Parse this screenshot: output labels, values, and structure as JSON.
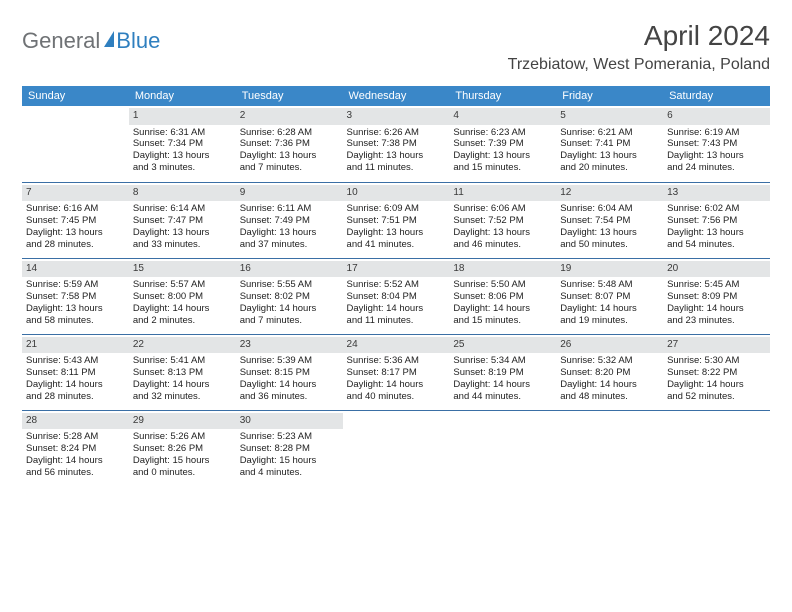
{
  "logo": {
    "part1": "General",
    "part2": "Blue"
  },
  "title": "April 2024",
  "location": "Trzebiatow, West Pomerania, Poland",
  "colors": {
    "header_bg": "#3a87c8",
    "header_text": "#ffffff",
    "daynum_bg": "#e3e5e6",
    "row_border": "#3a6fa5",
    "logo_gray": "#6f7275",
    "logo_blue": "#2f7fbf",
    "body_text": "#222222",
    "background": "#ffffff"
  },
  "fonts": {
    "title_size": 28,
    "location_size": 16,
    "weekday_size": 11,
    "cell_size": 9.5
  },
  "weekdays": [
    "Sunday",
    "Monday",
    "Tuesday",
    "Wednesday",
    "Thursday",
    "Friday",
    "Saturday"
  ],
  "weeks": [
    [
      null,
      {
        "n": "1",
        "sr": "Sunrise: 6:31 AM",
        "ss": "Sunset: 7:34 PM",
        "d1": "Daylight: 13 hours",
        "d2": "and 3 minutes."
      },
      {
        "n": "2",
        "sr": "Sunrise: 6:28 AM",
        "ss": "Sunset: 7:36 PM",
        "d1": "Daylight: 13 hours",
        "d2": "and 7 minutes."
      },
      {
        "n": "3",
        "sr": "Sunrise: 6:26 AM",
        "ss": "Sunset: 7:38 PM",
        "d1": "Daylight: 13 hours",
        "d2": "and 11 minutes."
      },
      {
        "n": "4",
        "sr": "Sunrise: 6:23 AM",
        "ss": "Sunset: 7:39 PM",
        "d1": "Daylight: 13 hours",
        "d2": "and 15 minutes."
      },
      {
        "n": "5",
        "sr": "Sunrise: 6:21 AM",
        "ss": "Sunset: 7:41 PM",
        "d1": "Daylight: 13 hours",
        "d2": "and 20 minutes."
      },
      {
        "n": "6",
        "sr": "Sunrise: 6:19 AM",
        "ss": "Sunset: 7:43 PM",
        "d1": "Daylight: 13 hours",
        "d2": "and 24 minutes."
      }
    ],
    [
      {
        "n": "7",
        "sr": "Sunrise: 6:16 AM",
        "ss": "Sunset: 7:45 PM",
        "d1": "Daylight: 13 hours",
        "d2": "and 28 minutes."
      },
      {
        "n": "8",
        "sr": "Sunrise: 6:14 AM",
        "ss": "Sunset: 7:47 PM",
        "d1": "Daylight: 13 hours",
        "d2": "and 33 minutes."
      },
      {
        "n": "9",
        "sr": "Sunrise: 6:11 AM",
        "ss": "Sunset: 7:49 PM",
        "d1": "Daylight: 13 hours",
        "d2": "and 37 minutes."
      },
      {
        "n": "10",
        "sr": "Sunrise: 6:09 AM",
        "ss": "Sunset: 7:51 PM",
        "d1": "Daylight: 13 hours",
        "d2": "and 41 minutes."
      },
      {
        "n": "11",
        "sr": "Sunrise: 6:06 AM",
        "ss": "Sunset: 7:52 PM",
        "d1": "Daylight: 13 hours",
        "d2": "and 46 minutes."
      },
      {
        "n": "12",
        "sr": "Sunrise: 6:04 AM",
        "ss": "Sunset: 7:54 PM",
        "d1": "Daylight: 13 hours",
        "d2": "and 50 minutes."
      },
      {
        "n": "13",
        "sr": "Sunrise: 6:02 AM",
        "ss": "Sunset: 7:56 PM",
        "d1": "Daylight: 13 hours",
        "d2": "and 54 minutes."
      }
    ],
    [
      {
        "n": "14",
        "sr": "Sunrise: 5:59 AM",
        "ss": "Sunset: 7:58 PM",
        "d1": "Daylight: 13 hours",
        "d2": "and 58 minutes."
      },
      {
        "n": "15",
        "sr": "Sunrise: 5:57 AM",
        "ss": "Sunset: 8:00 PM",
        "d1": "Daylight: 14 hours",
        "d2": "and 2 minutes."
      },
      {
        "n": "16",
        "sr": "Sunrise: 5:55 AM",
        "ss": "Sunset: 8:02 PM",
        "d1": "Daylight: 14 hours",
        "d2": "and 7 minutes."
      },
      {
        "n": "17",
        "sr": "Sunrise: 5:52 AM",
        "ss": "Sunset: 8:04 PM",
        "d1": "Daylight: 14 hours",
        "d2": "and 11 minutes."
      },
      {
        "n": "18",
        "sr": "Sunrise: 5:50 AM",
        "ss": "Sunset: 8:06 PM",
        "d1": "Daylight: 14 hours",
        "d2": "and 15 minutes."
      },
      {
        "n": "19",
        "sr": "Sunrise: 5:48 AM",
        "ss": "Sunset: 8:07 PM",
        "d1": "Daylight: 14 hours",
        "d2": "and 19 minutes."
      },
      {
        "n": "20",
        "sr": "Sunrise: 5:45 AM",
        "ss": "Sunset: 8:09 PM",
        "d1": "Daylight: 14 hours",
        "d2": "and 23 minutes."
      }
    ],
    [
      {
        "n": "21",
        "sr": "Sunrise: 5:43 AM",
        "ss": "Sunset: 8:11 PM",
        "d1": "Daylight: 14 hours",
        "d2": "and 28 minutes."
      },
      {
        "n": "22",
        "sr": "Sunrise: 5:41 AM",
        "ss": "Sunset: 8:13 PM",
        "d1": "Daylight: 14 hours",
        "d2": "and 32 minutes."
      },
      {
        "n": "23",
        "sr": "Sunrise: 5:39 AM",
        "ss": "Sunset: 8:15 PM",
        "d1": "Daylight: 14 hours",
        "d2": "and 36 minutes."
      },
      {
        "n": "24",
        "sr": "Sunrise: 5:36 AM",
        "ss": "Sunset: 8:17 PM",
        "d1": "Daylight: 14 hours",
        "d2": "and 40 minutes."
      },
      {
        "n": "25",
        "sr": "Sunrise: 5:34 AM",
        "ss": "Sunset: 8:19 PM",
        "d1": "Daylight: 14 hours",
        "d2": "and 44 minutes."
      },
      {
        "n": "26",
        "sr": "Sunrise: 5:32 AM",
        "ss": "Sunset: 8:20 PM",
        "d1": "Daylight: 14 hours",
        "d2": "and 48 minutes."
      },
      {
        "n": "27",
        "sr": "Sunrise: 5:30 AM",
        "ss": "Sunset: 8:22 PM",
        "d1": "Daylight: 14 hours",
        "d2": "and 52 minutes."
      }
    ],
    [
      {
        "n": "28",
        "sr": "Sunrise: 5:28 AM",
        "ss": "Sunset: 8:24 PM",
        "d1": "Daylight: 14 hours",
        "d2": "and 56 minutes."
      },
      {
        "n": "29",
        "sr": "Sunrise: 5:26 AM",
        "ss": "Sunset: 8:26 PM",
        "d1": "Daylight: 15 hours",
        "d2": "and 0 minutes."
      },
      {
        "n": "30",
        "sr": "Sunrise: 5:23 AM",
        "ss": "Sunset: 8:28 PM",
        "d1": "Daylight: 15 hours",
        "d2": "and 4 minutes."
      },
      null,
      null,
      null,
      null
    ]
  ]
}
